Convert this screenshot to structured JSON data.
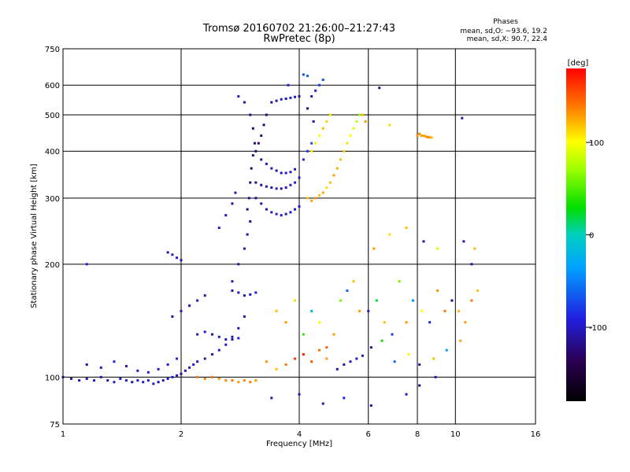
{
  "chart_data": {
    "type": "scatter",
    "title": "Tromsø 20160702 21:26:00–21:27:43",
    "subtitle": "RwPretec (8p)",
    "xlabel": "Frequency [MHz]",
    "ylabel": "Stationary phase Virtual Height [km]",
    "x_scale": "log",
    "y_scale": "log",
    "xlim": [
      1,
      16
    ],
    "ylim": [
      75,
      750
    ],
    "x_ticks": [
      1,
      2,
      4,
      6,
      8,
      10,
      16
    ],
    "y_ticks": [
      75,
      100,
      200,
      300,
      400,
      500,
      600,
      750
    ],
    "grid": true,
    "legend": {
      "title": "Phases",
      "lines": [
        "mean, sd,O: −93.6, 19.2",
        "mean, sd,X:  90.7, 22.4"
      ]
    },
    "colorbar": {
      "label": "[deg]",
      "range": [
        -180,
        180
      ],
      "ticks": [
        100,
        0,
        -100
      ]
    },
    "series": [
      {
        "points": [
          [
            1.0,
            100,
            -100
          ],
          [
            1.05,
            99,
            -105
          ],
          [
            1.1,
            98,
            -110
          ],
          [
            1.15,
            99,
            -100
          ],
          [
            1.2,
            98,
            -95
          ],
          [
            1.25,
            100,
            -105
          ],
          [
            1.3,
            98,
            -110
          ],
          [
            1.35,
            97,
            -100
          ],
          [
            1.4,
            99,
            -95
          ],
          [
            1.45,
            98,
            -100
          ],
          [
            1.5,
            97,
            -110
          ],
          [
            1.55,
            98,
            -105
          ],
          [
            1.6,
            97,
            -100
          ],
          [
            1.65,
            98,
            -95
          ],
          [
            1.7,
            96,
            -100
          ],
          [
            1.75,
            97,
            -110
          ],
          [
            1.8,
            98,
            -105
          ],
          [
            1.85,
            99,
            -100
          ],
          [
            1.9,
            100,
            -95
          ],
          [
            1.95,
            101,
            -100
          ],
          [
            2.0,
            102,
            -110
          ],
          [
            2.05,
            104,
            -105
          ],
          [
            2.1,
            106,
            -100
          ],
          [
            2.15,
            108,
            -95
          ],
          [
            2.2,
            110,
            -100
          ],
          [
            2.3,
            112,
            -105
          ],
          [
            2.4,
            115,
            -100
          ],
          [
            2.5,
            118,
            -95
          ],
          [
            2.6,
            122,
            -100
          ],
          [
            2.7,
            128,
            -110
          ],
          [
            2.8,
            135,
            -105
          ],
          [
            2.9,
            145,
            -100
          ],
          [
            2.2,
            100,
            140
          ],
          [
            2.3,
            99,
            135
          ],
          [
            2.4,
            100,
            140
          ],
          [
            2.5,
            99,
            130
          ],
          [
            2.6,
            98,
            135
          ],
          [
            2.7,
            98,
            140
          ],
          [
            2.8,
            97,
            130
          ],
          [
            2.9,
            98,
            135
          ],
          [
            3.0,
            97,
            140
          ],
          [
            3.1,
            98,
            130
          ],
          [
            1.15,
            108,
            -110
          ],
          [
            1.25,
            106,
            -100
          ],
          [
            1.35,
            110,
            -90
          ],
          [
            1.45,
            107,
            -110
          ],
          [
            1.55,
            104,
            -100
          ],
          [
            1.65,
            103,
            -95
          ],
          [
            1.75,
            105,
            -100
          ],
          [
            1.85,
            108,
            -90
          ],
          [
            1.95,
            112,
            -85
          ],
          [
            1.15,
            200,
            -90
          ],
          [
            1.85,
            215,
            -105
          ],
          [
            1.9,
            212,
            -100
          ],
          [
            1.95,
            208,
            -95
          ],
          [
            2.0,
            205,
            -100
          ],
          [
            1.9,
            145,
            -110
          ],
          [
            2.0,
            150,
            -100
          ],
          [
            2.1,
            155,
            -105
          ],
          [
            2.2,
            160,
            -100
          ],
          [
            2.3,
            165,
            -110
          ],
          [
            2.2,
            130,
            -100
          ],
          [
            2.3,
            132,
            -95
          ],
          [
            2.4,
            130,
            -110
          ],
          [
            2.5,
            128,
            -100
          ],
          [
            2.6,
            126,
            -105
          ],
          [
            2.7,
            126,
            -100
          ],
          [
            2.8,
            127,
            -95
          ],
          [
            2.7,
            170,
            -110
          ],
          [
            2.8,
            168,
            -100
          ],
          [
            2.9,
            165,
            -105
          ],
          [
            3.0,
            166,
            -100
          ],
          [
            3.1,
            168,
            -95
          ],
          [
            2.7,
            180,
            -100
          ],
          [
            2.8,
            200,
            -110
          ],
          [
            2.9,
            220,
            -105
          ],
          [
            2.95,
            240,
            -110
          ],
          [
            3.0,
            260,
            -120
          ],
          [
            2.5,
            250,
            -100
          ],
          [
            2.6,
            270,
            -105
          ],
          [
            2.7,
            290,
            -110
          ],
          [
            2.75,
            310,
            -100
          ],
          [
            2.95,
            280,
            -120
          ],
          [
            2.98,
            300,
            -115
          ],
          [
            3.0,
            330,
            -125
          ],
          [
            3.02,
            360,
            -130
          ],
          [
            3.05,
            390,
            -120
          ],
          [
            3.08,
            420,
            -125
          ],
          [
            3.05,
            460,
            -130
          ],
          [
            3.0,
            500,
            -120
          ],
          [
            2.9,
            540,
            -110
          ],
          [
            2.8,
            560,
            -100
          ],
          [
            3.1,
            300,
            -110
          ],
          [
            3.2,
            290,
            -105
          ],
          [
            3.3,
            280,
            -110
          ],
          [
            3.4,
            275,
            -100
          ],
          [
            3.5,
            272,
            -95
          ],
          [
            3.6,
            270,
            -100
          ],
          [
            3.7,
            272,
            -105
          ],
          [
            3.8,
            275,
            -100
          ],
          [
            3.9,
            280,
            -95
          ],
          [
            4.0,
            285,
            -100
          ],
          [
            3.1,
            330,
            -120
          ],
          [
            3.2,
            325,
            -115
          ],
          [
            3.3,
            322,
            -110
          ],
          [
            3.4,
            320,
            -105
          ],
          [
            3.5,
            318,
            -100
          ],
          [
            3.6,
            318,
            -110
          ],
          [
            3.7,
            320,
            -105
          ],
          [
            3.8,
            325,
            -100
          ],
          [
            3.9,
            330,
            -95
          ],
          [
            4.0,
            340,
            -100
          ],
          [
            3.2,
            380,
            -110
          ],
          [
            3.3,
            370,
            -105
          ],
          [
            3.4,
            360,
            -100
          ],
          [
            3.5,
            355,
            -110
          ],
          [
            3.6,
            350,
            -105
          ],
          [
            3.7,
            350,
            -100
          ],
          [
            3.8,
            352,
            -95
          ],
          [
            3.9,
            358,
            -100
          ],
          [
            4.1,
            380,
            -90
          ],
          [
            4.2,
            400,
            -80
          ],
          [
            4.3,
            420,
            -70
          ],
          [
            3.1,
            400,
            -130
          ],
          [
            3.15,
            420,
            -125
          ],
          [
            3.2,
            440,
            -120
          ],
          [
            3.25,
            470,
            -130
          ],
          [
            3.3,
            500,
            -125
          ],
          [
            3.4,
            540,
            -115
          ],
          [
            3.5,
            545,
            -110
          ],
          [
            3.6,
            550,
            -105
          ],
          [
            3.7,
            552,
            -100
          ],
          [
            3.8,
            555,
            -95
          ],
          [
            3.9,
            558,
            -100
          ],
          [
            4.0,
            560,
            -110
          ],
          [
            3.75,
            600,
            -90
          ],
          [
            4.1,
            640,
            -70
          ],
          [
            4.2,
            635,
            -60
          ],
          [
            4.2,
            300,
            120
          ],
          [
            4.3,
            295,
            125
          ],
          [
            4.4,
            300,
            130
          ],
          [
            4.5,
            305,
            120
          ],
          [
            4.6,
            310,
            125
          ],
          [
            4.7,
            320,
            110
          ],
          [
            4.8,
            330,
            120
          ],
          [
            4.9,
            345,
            130
          ],
          [
            5.0,
            360,
            125
          ],
          [
            5.1,
            380,
            120
          ],
          [
            5.2,
            400,
            115
          ],
          [
            5.3,
            420,
            110
          ],
          [
            5.4,
            440,
            100
          ],
          [
            5.5,
            460,
            90
          ],
          [
            5.6,
            480,
            80
          ],
          [
            5.7,
            500,
            70
          ],
          [
            4.3,
            400,
            110
          ],
          [
            4.4,
            420,
            105
          ],
          [
            4.5,
            440,
            100
          ],
          [
            4.6,
            460,
            120
          ],
          [
            4.7,
            480,
            115
          ],
          [
            4.8,
            500,
            110
          ],
          [
            4.3,
            560,
            -100
          ],
          [
            4.4,
            580,
            -90
          ],
          [
            4.5,
            600,
            -80
          ],
          [
            4.6,
            620,
            -70
          ],
          [
            4.2,
            520,
            -120
          ],
          [
            4.35,
            480,
            -110
          ],
          [
            6.4,
            590,
            -110
          ],
          [
            5.8,
            500,
            120
          ],
          [
            5.9,
            480,
            130
          ],
          [
            6.8,
            470,
            110
          ],
          [
            8.0,
            440,
            130
          ],
          [
            8.1,
            445,
            135
          ],
          [
            8.2,
            440,
            130
          ],
          [
            8.3,
            440,
            125
          ],
          [
            8.4,
            438,
            130
          ],
          [
            8.5,
            436,
            135
          ],
          [
            8.6,
            436,
            130
          ],
          [
            8.7,
            435,
            120
          ],
          [
            3.5,
            150,
            120
          ],
          [
            3.7,
            140,
            130
          ],
          [
            3.9,
            160,
            110
          ],
          [
            4.1,
            130,
            40
          ],
          [
            4.3,
            150,
            -20
          ],
          [
            4.5,
            140,
            100
          ],
          [
            4.7,
            120,
            150
          ],
          [
            4.9,
            130,
            130
          ],
          [
            5.1,
            160,
            60
          ],
          [
            5.3,
            170,
            -60
          ],
          [
            5.5,
            180,
            120
          ],
          [
            5.7,
            150,
            130
          ],
          [
            3.3,
            110,
            130
          ],
          [
            3.5,
            105,
            120
          ],
          [
            3.7,
            108,
            140
          ],
          [
            3.9,
            112,
            160
          ],
          [
            4.1,
            115,
            170
          ],
          [
            4.3,
            110,
            150
          ],
          [
            4.5,
            118,
            140
          ],
          [
            4.7,
            112,
            130
          ],
          [
            5.0,
            105,
            -110
          ],
          [
            5.2,
            108,
            -105
          ],
          [
            5.4,
            110,
            -100
          ],
          [
            5.6,
            112,
            -95
          ],
          [
            5.8,
            114,
            -100
          ],
          [
            6.0,
            150,
            -100
          ],
          [
            6.3,
            160,
            20
          ],
          [
            6.6,
            140,
            120
          ],
          [
            6.9,
            130,
            -80
          ],
          [
            7.2,
            180,
            60
          ],
          [
            7.5,
            140,
            130
          ],
          [
            7.8,
            160,
            -40
          ],
          [
            8.2,
            150,
            100
          ],
          [
            8.6,
            140,
            -90
          ],
          [
            9.0,
            170,
            130
          ],
          [
            9.4,
            150,
            140
          ],
          [
            9.8,
            160,
            -120
          ],
          [
            10.2,
            150,
            120
          ],
          [
            10.6,
            140,
            130
          ],
          [
            11.0,
            160,
            140
          ],
          [
            11.4,
            170,
            120
          ],
          [
            6.2,
            220,
            130
          ],
          [
            6.8,
            240,
            110
          ],
          [
            7.5,
            250,
            120
          ],
          [
            8.3,
            230,
            -110
          ],
          [
            9.0,
            220,
            90
          ],
          [
            10.5,
            230,
            -100
          ],
          [
            11.2,
            220,
            120
          ],
          [
            6.1,
            120,
            -120
          ],
          [
            6.5,
            125,
            30
          ],
          [
            7.0,
            110,
            -60
          ],
          [
            7.6,
            115,
            100
          ],
          [
            8.1,
            108,
            -100
          ],
          [
            8.8,
            112,
            120
          ],
          [
            9.5,
            118,
            -40
          ],
          [
            10.3,
            125,
            130
          ],
          [
            3.4,
            88,
            -110
          ],
          [
            4.0,
            90,
            -100
          ],
          [
            4.6,
            85,
            -105
          ],
          [
            5.2,
            88,
            -90
          ],
          [
            6.1,
            84,
            -110
          ],
          [
            7.5,
            90,
            -100
          ],
          [
            8.1,
            95,
            -120
          ],
          [
            8.9,
            100,
            -100
          ],
          [
            10.4,
            490,
            -100
          ],
          [
            11.0,
            200,
            -110
          ]
        ]
      }
    ]
  }
}
